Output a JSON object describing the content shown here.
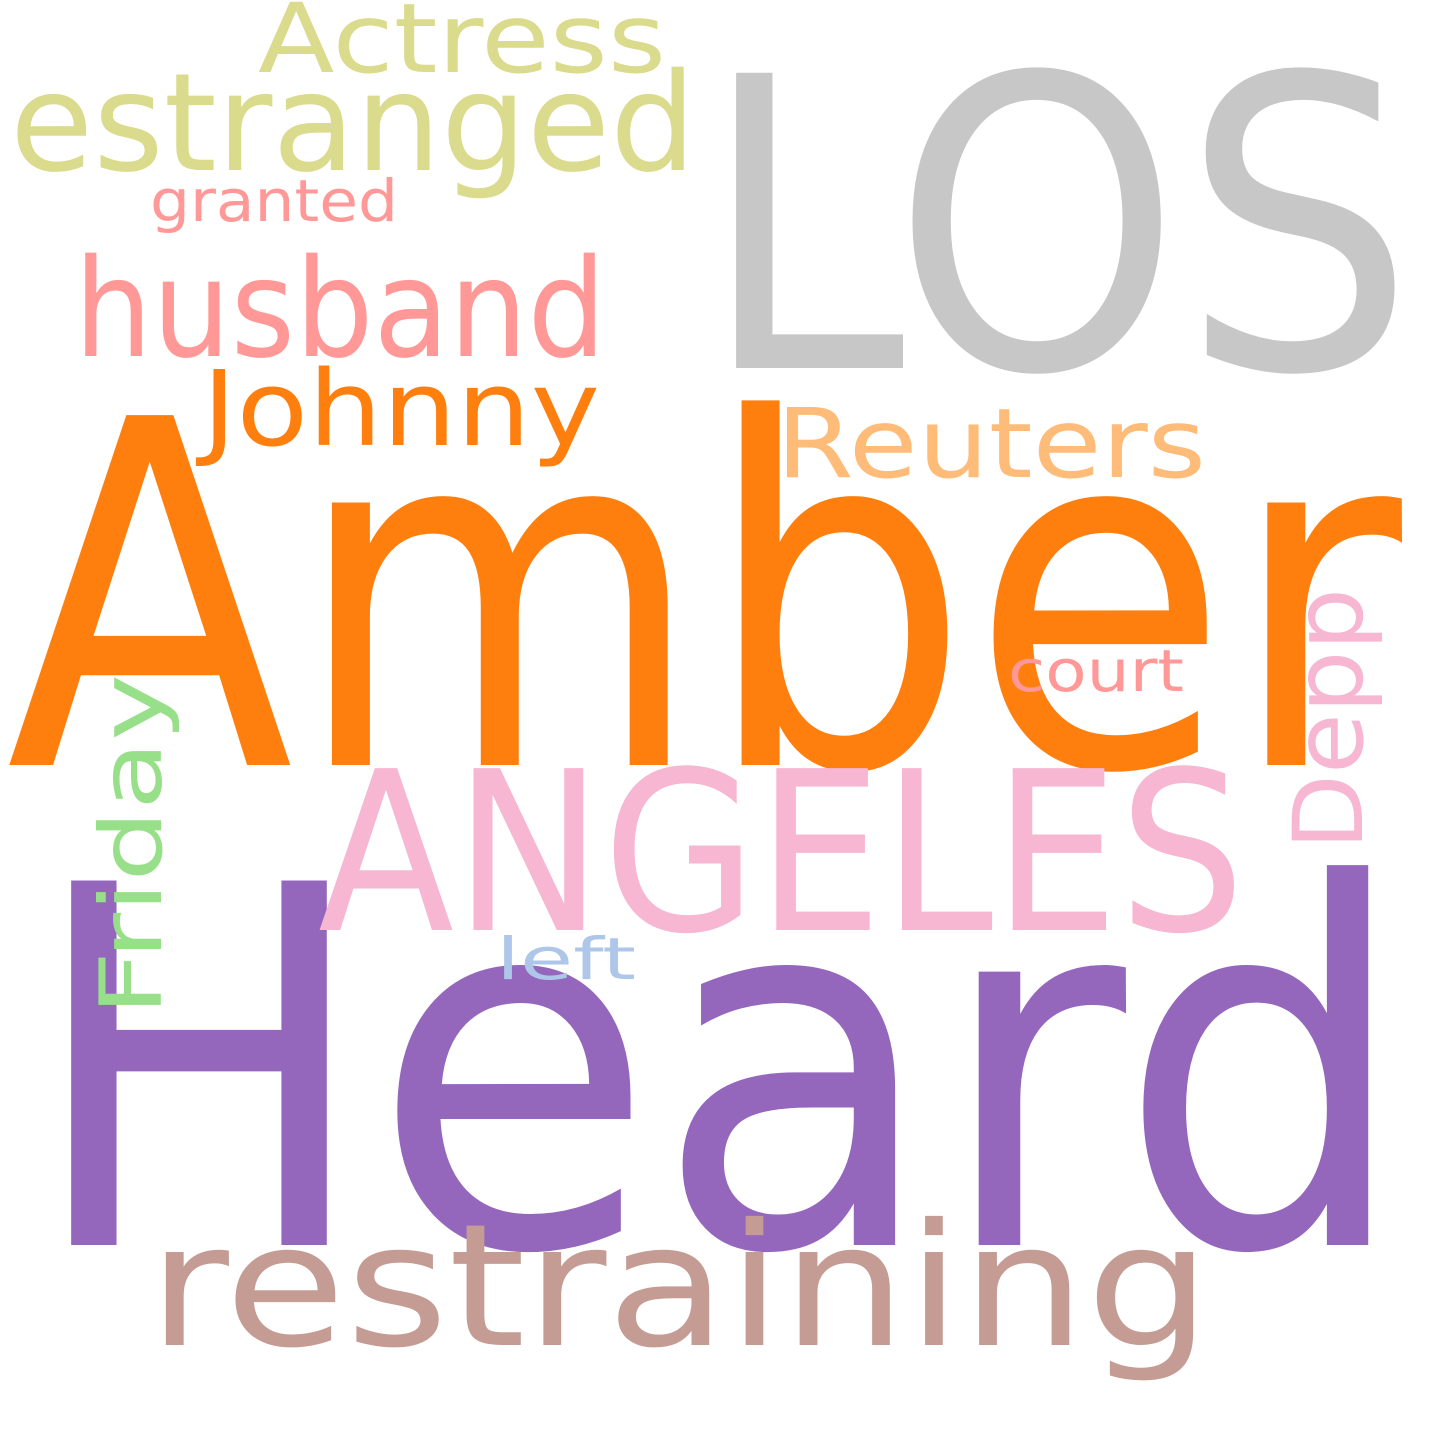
{
  "cloud": {
    "words": [
      {
        "text": "LOS",
        "color": "#c7c7c7"
      },
      {
        "text": "Amber",
        "color": "#ff7f0e"
      },
      {
        "text": "Heard",
        "color": "#9467bd"
      },
      {
        "text": "ANGELES",
        "color": "#f7b6d2"
      },
      {
        "text": "restraining",
        "color": "#c49c94"
      },
      {
        "text": "estranged",
        "color": "#dbdb8d"
      },
      {
        "text": "Actress",
        "color": "#dbdb8d"
      },
      {
        "text": "husband",
        "color": "#ff9896"
      },
      {
        "text": "Johnny",
        "color": "#ff7f0e"
      },
      {
        "text": "Reuters",
        "color": "#ffbb78"
      },
      {
        "text": "Depp",
        "color": "#f7b6d2"
      },
      {
        "text": "Friday",
        "color": "#98df8a"
      },
      {
        "text": "granted",
        "color": "#ff9896"
      },
      {
        "text": "court",
        "color": "#ff9896"
      },
      {
        "text": "left",
        "color": "#aec7e8"
      }
    ]
  }
}
